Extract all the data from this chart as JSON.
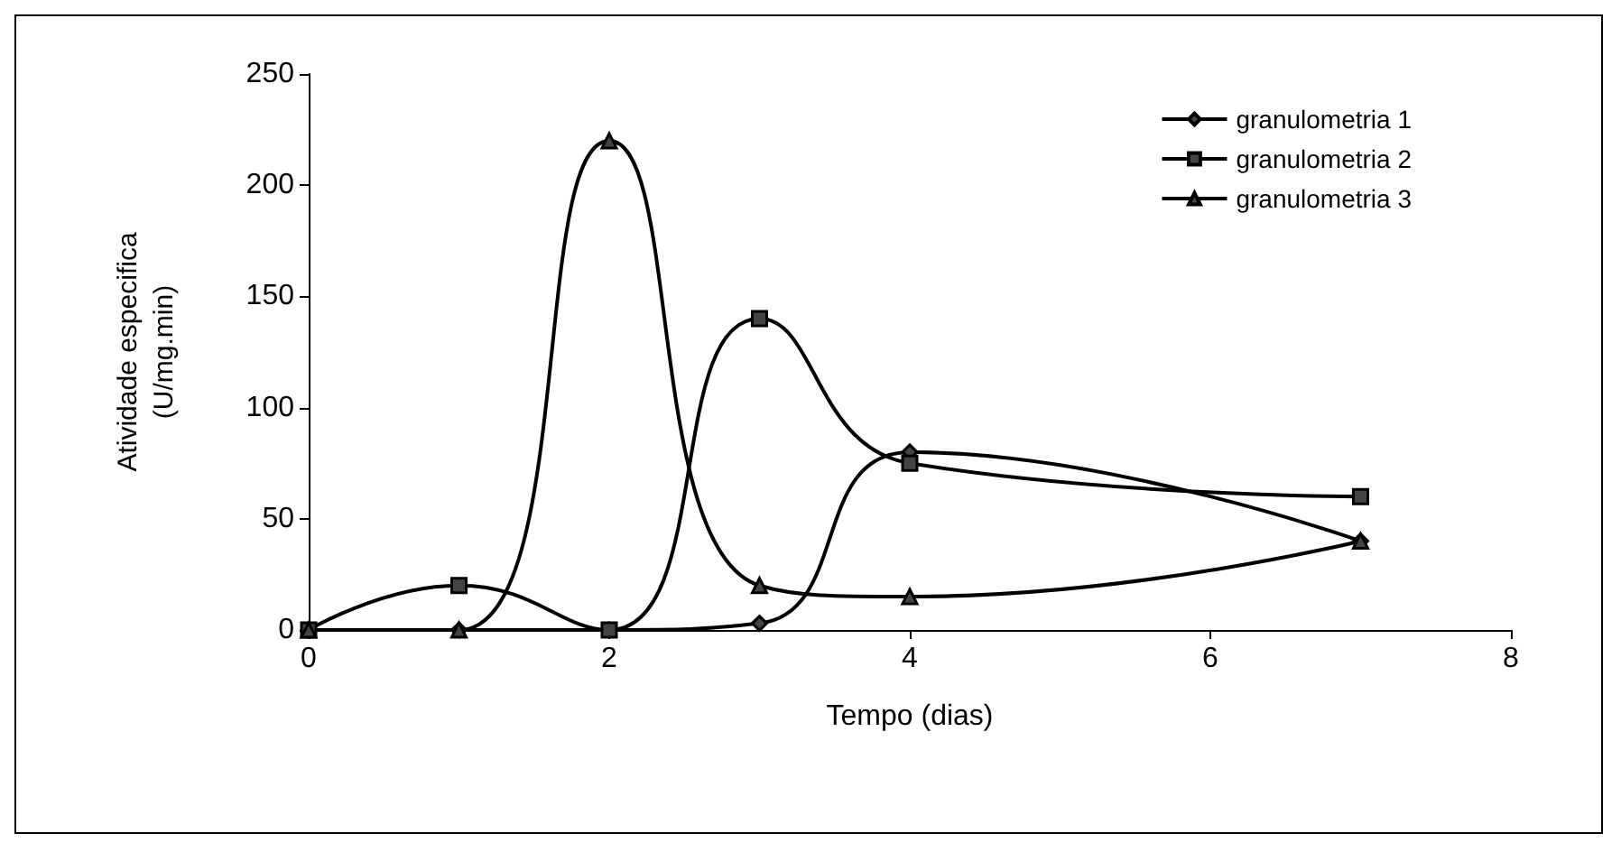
{
  "chart_data": {
    "type": "line",
    "xlabel": "Tempo (dias)",
    "ylabel": "Atividade especifica\n(U/mg.min)",
    "x": [
      0,
      1,
      2,
      3,
      4,
      7
    ],
    "xlim": [
      0,
      8
    ],
    "xticks": [
      0,
      2,
      4,
      6,
      8
    ],
    "ylim": [
      0,
      250
    ],
    "yticks": [
      0,
      50,
      100,
      150,
      200,
      250
    ],
    "grid": false,
    "legend": "top right",
    "series": [
      {
        "name": "granulometria 1",
        "color": "#000000",
        "marker": "diamond",
        "values": [
          0,
          0,
          0,
          3,
          80,
          40
        ]
      },
      {
        "name": "granulometria 2",
        "color": "#000000",
        "marker": "square",
        "values": [
          0,
          20,
          0,
          140,
          75,
          60
        ]
      },
      {
        "name": "granulometria 3",
        "color": "#000000",
        "marker": "triangle",
        "values": [
          0,
          0,
          220,
          20,
          15,
          40
        ]
      }
    ]
  }
}
